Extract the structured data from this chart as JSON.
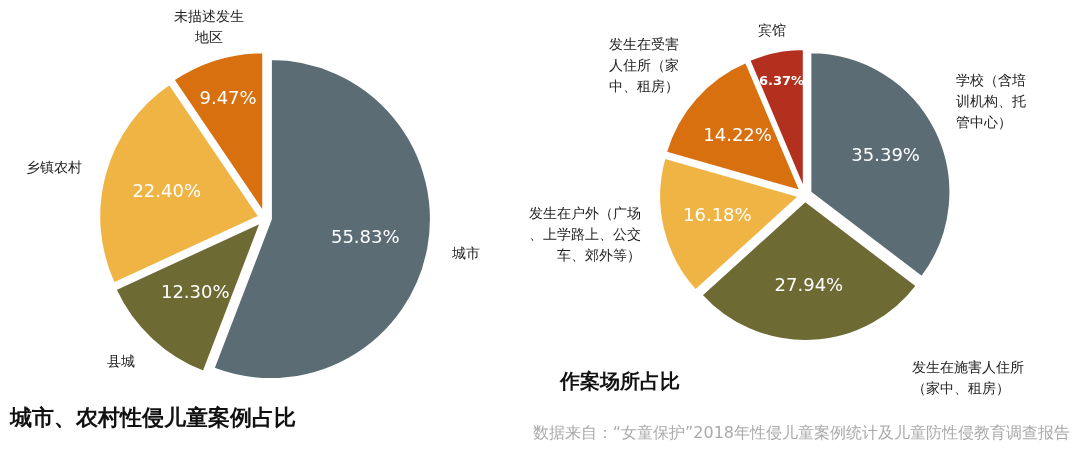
{
  "chart_data": [
    {
      "type": "pie",
      "title": "城市、农村性侵儿童案例占比",
      "categories": [
        "城市",
        "县城",
        "乡镇农村",
        "未描述发生地区"
      ],
      "values": [
        55.83,
        12.3,
        22.4,
        9.47
      ],
      "colors": [
        "#5b6c74",
        "#6e6a34",
        "#f0b445",
        "#d9700f"
      ],
      "value_labels": [
        "55.83%",
        "12.30%",
        "22.40%",
        "9.47%"
      ]
    },
    {
      "type": "pie",
      "title": "作案场所占比",
      "categories": [
        "学校（含培训机构、托管中心）",
        "发生在施害人住所（家中、租房）",
        "发生在户外（广场、上学路上、公交车、郊外等）",
        "发生在受害人住所（家中、租房）",
        "宾馆"
      ],
      "values": [
        35.39,
        27.94,
        16.18,
        14.22,
        6.37
      ],
      "colors": [
        "#5b6c74",
        "#6e6a34",
        "#f0b445",
        "#d9700f",
        "#b3301f"
      ],
      "value_labels": [
        "35.39%",
        "27.94%",
        "16.18%",
        "14.22%",
        "6.37%"
      ],
      "annotations": [
        "数据来自：“女童保护”2018年性侵儿童案例统计及儿童防性侵教育调查报告"
      ]
    }
  ]
}
